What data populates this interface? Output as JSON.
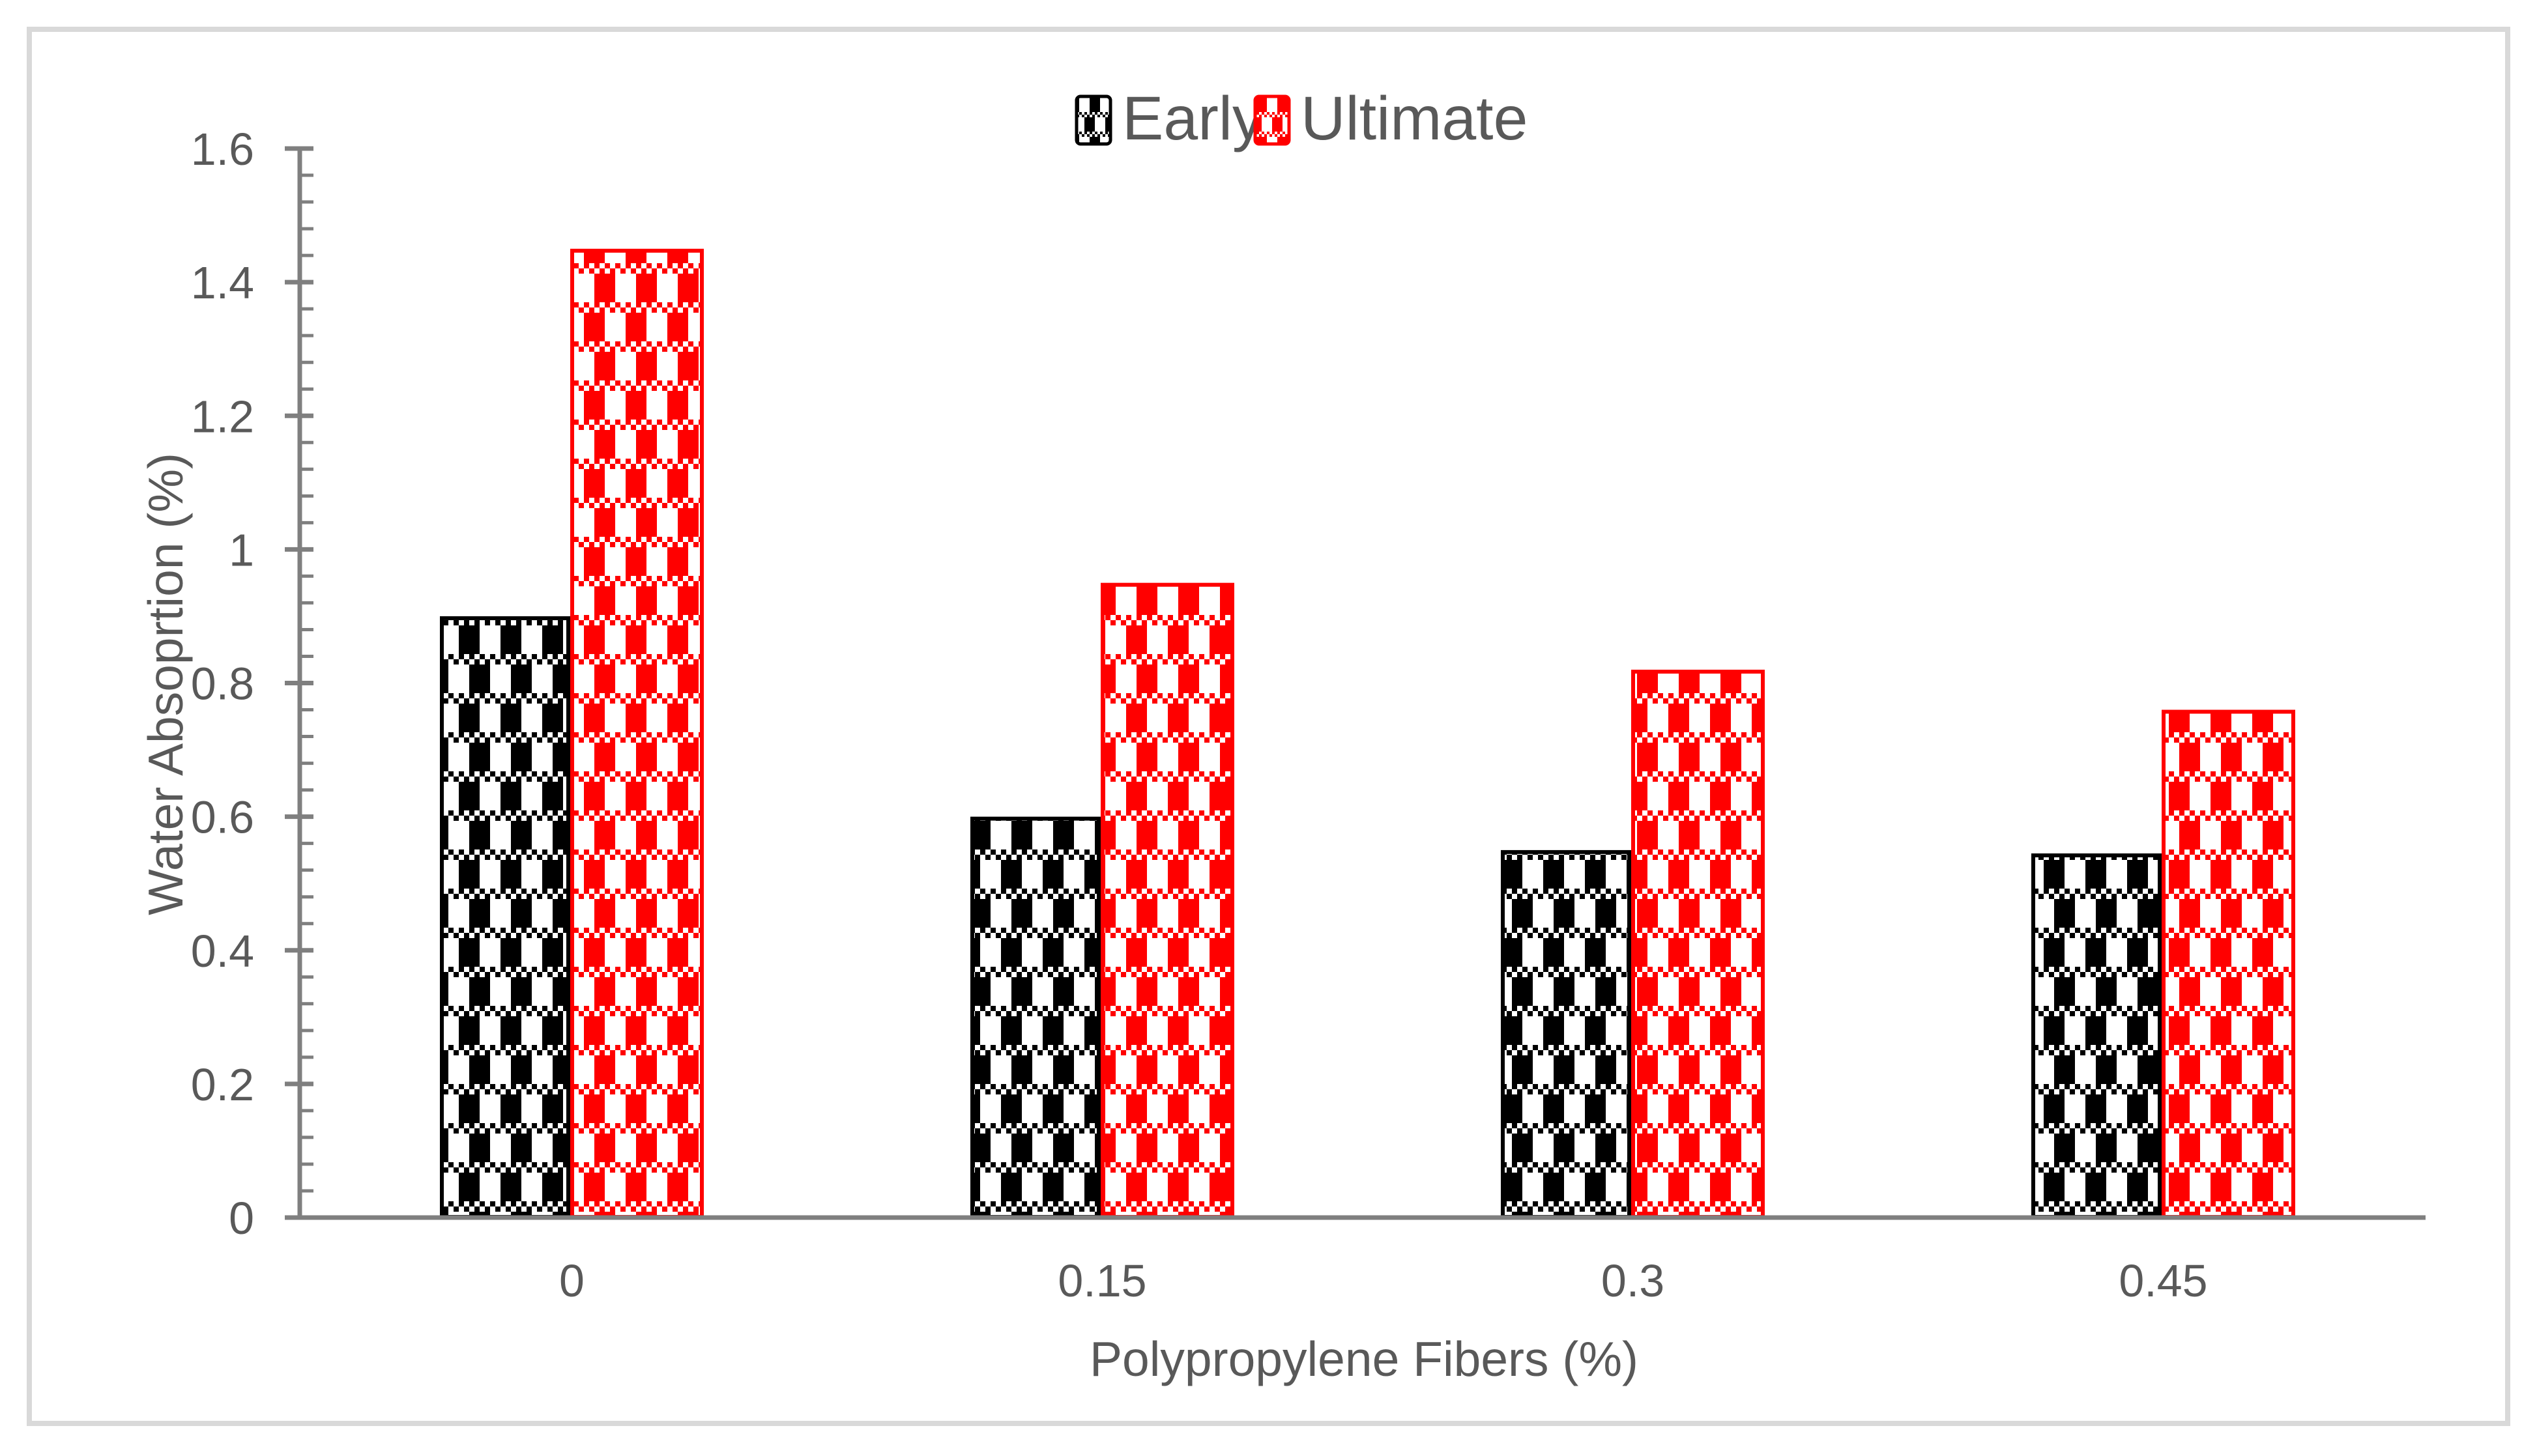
{
  "figure": {
    "border_color": "#D9D9D9",
    "background": "#FFFFFF"
  },
  "chart_data": {
    "type": "bar",
    "title": "",
    "categories": [
      "0",
      "0.15",
      "0.3",
      "0.45"
    ],
    "series": [
      {
        "name": "Early",
        "color": "#000000",
        "pattern": "checker-weave",
        "values": [
          0.9,
          0.6,
          0.55,
          0.545
        ]
      },
      {
        "name": "Ultimate",
        "color": "#FF0000",
        "pattern": "checker-weave",
        "values": [
          1.45,
          0.95,
          0.82,
          0.76
        ]
      }
    ],
    "xlabel": "Polypropylene Fibers (%)",
    "ylabel": "Water Absoprtion (%)",
    "ylim": [
      0,
      1.6
    ],
    "ytick_labels": [
      "0",
      "0.2",
      "0.4",
      "0.6",
      "0.8",
      "1",
      "1.2",
      "1.4",
      "1.6"
    ],
    "ytick_step": 0.2,
    "minor_tick_step": 0.04,
    "grid": false,
    "legend_position": "top-center",
    "axis_color": "#7F7F7F",
    "text_color": "#595959"
  }
}
